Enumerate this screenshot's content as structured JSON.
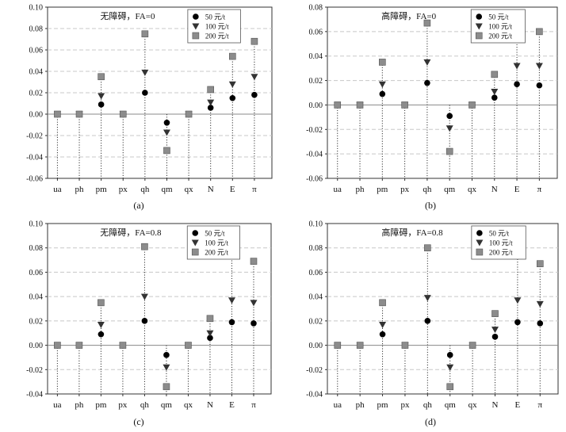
{
  "figure": {
    "captions": [
      "(a)",
      "(b)",
      "(c)",
      "(d)"
    ]
  },
  "chart_data": [
    {
      "panel": "(a)",
      "type": "scatter",
      "title": "无障碍，FA=0",
      "categories": [
        "ua",
        "ph",
        "pm",
        "px",
        "qh",
        "qm",
        "qx",
        "N",
        "E",
        "π"
      ],
      "ylim": [
        -0.06,
        0.1
      ],
      "yticks": [
        "0.10",
        "0.08",
        "0.06",
        "0.04",
        "0.02",
        "0.00",
        "-0.02",
        "-0.04",
        "-0.06"
      ],
      "grid": true,
      "legend_position": "top-right",
      "series": [
        {
          "name": "50 元/t",
          "marker": "circle",
          "color": "#000000",
          "values": [
            0,
            0,
            0.009,
            0,
            0.02,
            -0.008,
            0,
            0.006,
            0.015,
            0.018
          ]
        },
        {
          "name": "100 元/t",
          "marker": "triangle",
          "color": "#333333",
          "values": [
            0,
            0,
            0.017,
            0,
            0.039,
            -0.017,
            0,
            0.011,
            0.028,
            0.035
          ]
        },
        {
          "name": "200 元/t",
          "marker": "square",
          "color": "#8c8c8c",
          "values": [
            0,
            0,
            0.035,
            0,
            0.075,
            -0.034,
            0,
            0.023,
            0.054,
            0.068
          ]
        }
      ]
    },
    {
      "panel": "(b)",
      "type": "scatter",
      "title": "高障碍，FA=0",
      "categories": [
        "ua",
        "ph",
        "pm",
        "px",
        "qh",
        "qm",
        "qx",
        "N",
        "E",
        "π"
      ],
      "ylim": [
        -0.06,
        0.08
      ],
      "yticks": [
        "0.08",
        "0.06",
        "0.04",
        "0.02",
        "0.00",
        "-0.02",
        "-0.04",
        "-0.06"
      ],
      "grid": true,
      "legend_position": "top-right",
      "series": [
        {
          "name": "50 元/t",
          "marker": "circle",
          "color": "#000000",
          "values": [
            0,
            0,
            0.009,
            0,
            0.018,
            -0.009,
            0,
            0.006,
            0.017,
            0.016
          ]
        },
        {
          "name": "100 元/t",
          "marker": "triangle",
          "color": "#333333",
          "values": [
            0,
            0,
            0.017,
            0,
            0.035,
            -0.019,
            0,
            0.011,
            0.032,
            0.032
          ]
        },
        {
          "name": "200 元/t",
          "marker": "square",
          "color": "#8c8c8c",
          "values": [
            0,
            0,
            0.035,
            0,
            0.067,
            -0.038,
            0,
            0.025,
            0.06,
            0.06
          ]
        }
      ]
    },
    {
      "panel": "(c)",
      "type": "scatter",
      "title": "无障碍，FA=0.8",
      "categories": [
        "ua",
        "ph",
        "pm",
        "px",
        "qh",
        "qm",
        "qx",
        "N",
        "E",
        "π"
      ],
      "ylim": [
        -0.04,
        0.1
      ],
      "yticks": [
        "0.10",
        "0.08",
        "0.06",
        "0.04",
        "0.02",
        "0.00",
        "-0.02",
        "-0.04"
      ],
      "grid": true,
      "legend_position": "top-right",
      "series": [
        {
          "name": "50 元/t",
          "marker": "circle",
          "color": "#000000",
          "values": [
            0,
            0,
            0.009,
            0,
            0.02,
            -0.008,
            0,
            0.006,
            0.019,
            0.018
          ]
        },
        {
          "name": "100 元/t",
          "marker": "triangle",
          "color": "#333333",
          "values": [
            0,
            0,
            0.017,
            0,
            0.04,
            -0.018,
            0,
            0.01,
            0.037,
            0.035
          ]
        },
        {
          "name": "200 元/t",
          "marker": "square",
          "color": "#8c8c8c",
          "values": [
            0,
            0,
            0.035,
            0,
            0.081,
            -0.034,
            0,
            0.022,
            0.076,
            0.069
          ]
        }
      ]
    },
    {
      "panel": "(d)",
      "type": "scatter",
      "title": "高障碍，FA=0.8",
      "categories": [
        "ua",
        "ph",
        "pm",
        "px",
        "qh",
        "qm",
        "qx",
        "N",
        "E",
        "π"
      ],
      "ylim": [
        -0.04,
        0.1
      ],
      "yticks": [
        "0.10",
        "0.08",
        "0.06",
        "0.04",
        "0.02",
        "0.00",
        "-0.02",
        "-0.04"
      ],
      "grid": true,
      "legend_position": "top-right",
      "series": [
        {
          "name": "50 元/t",
          "marker": "circle",
          "color": "#000000",
          "values": [
            0,
            0,
            0.009,
            0,
            0.02,
            -0.008,
            0,
            0.007,
            0.019,
            0.018
          ]
        },
        {
          "name": "100 元/t",
          "marker": "triangle",
          "color": "#333333",
          "values": [
            0,
            0,
            0.017,
            0,
            0.039,
            -0.018,
            0,
            0.013,
            0.037,
            0.034
          ]
        },
        {
          "name": "200 元/t",
          "marker": "square",
          "color": "#8c8c8c",
          "values": [
            0,
            0,
            0.035,
            0,
            0.08,
            -0.034,
            0,
            0.026,
            0.075,
            0.067
          ]
        }
      ]
    }
  ]
}
